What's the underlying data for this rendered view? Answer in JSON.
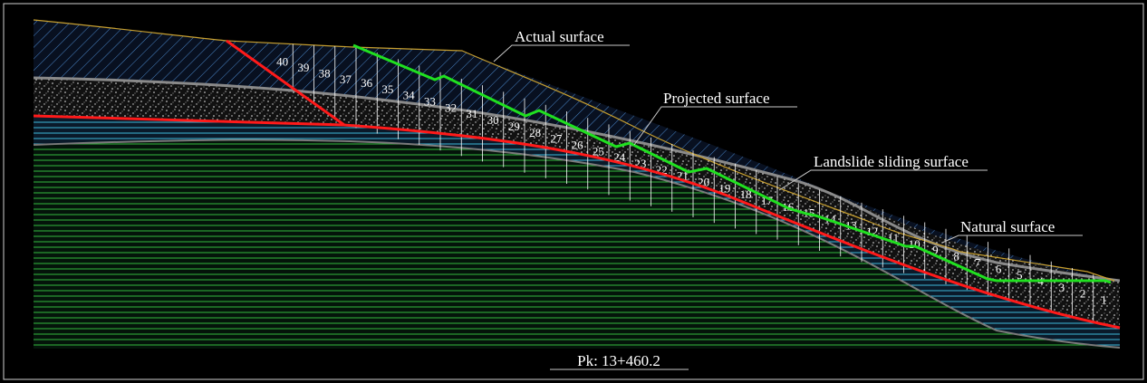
{
  "labels": {
    "actual_surface": "Actual surface",
    "projected_surface": "Projected surface",
    "landslide_sliding_surface": "Landslide sliding surface",
    "natural_surface": "Natural surface",
    "section": "Pk: 13+460.2"
  },
  "slices": [
    "1",
    "2",
    "3",
    "4",
    "5",
    "6",
    "7",
    "8",
    "9",
    "10",
    "11",
    "12",
    "13",
    "14",
    "15",
    "16",
    "17",
    "18",
    "19",
    "20",
    "21",
    "22",
    "23",
    "24",
    "25",
    "26",
    "27",
    "28",
    "29",
    "30",
    "31",
    "32",
    "33",
    "34",
    "35",
    "36",
    "37",
    "38",
    "39",
    "40"
  ],
  "colors": {
    "background": "#000000",
    "frame": "#cfcfcf",
    "actual_surface_line": "#c8a030",
    "projected_surface_line": "#20e020",
    "sliding_surface_line": "#ff1a1a",
    "hatch_blue": "#4a86c8",
    "hatch_cyan": "#3fb8d8",
    "bedrock_green": "#2ea83a",
    "gravel": "#e8e8e8"
  }
}
